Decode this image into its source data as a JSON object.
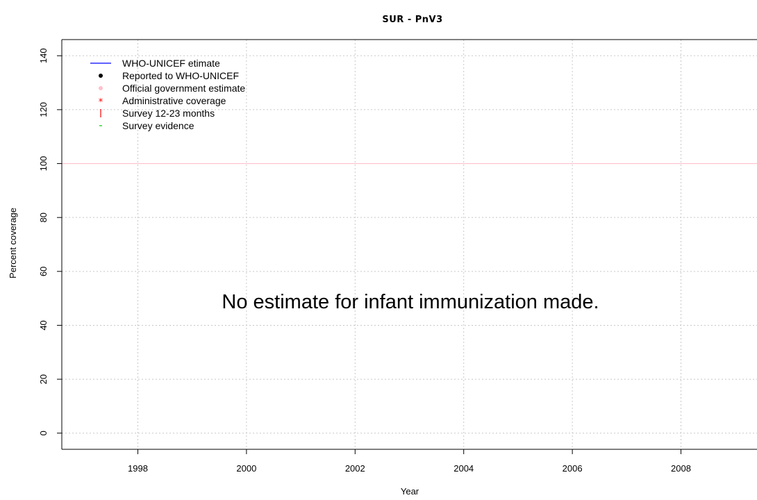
{
  "chart_data": {
    "type": "scatter",
    "title": "SUR  -  PnV3",
    "xlabel": "Year",
    "ylabel": "Percent coverage",
    "xlim": [
      1996.6,
      2009.4
    ],
    "ylim": [
      -6,
      146
    ],
    "x_ticks": [
      1998,
      2000,
      2002,
      2004,
      2006,
      2008
    ],
    "y_ticks": [
      0,
      20,
      40,
      60,
      80,
      100,
      120,
      140
    ],
    "grid": true,
    "reference_line": {
      "y": 100,
      "color": "#ffc0cb"
    },
    "legend_position": "top-left",
    "legend": [
      {
        "label": "WHO-UNICEF etimate",
        "symbol": "line",
        "color": "#0000ff"
      },
      {
        "label": "Reported to WHO-UNICEF",
        "symbol": "dot",
        "color": "#000000"
      },
      {
        "label": "Official government estimate",
        "symbol": "dot",
        "color": "#ffc0cb"
      },
      {
        "label": "Administrative coverage",
        "symbol": "star",
        "color": "#ff0000"
      },
      {
        "label": "Survey 12-23 months",
        "symbol": "bar",
        "color": "#ff0000"
      },
      {
        "label": "Survey evidence",
        "symbol": "dash",
        "color": "#00cc00"
      }
    ],
    "annotation": "No estimate for infant immunization made.",
    "series": []
  }
}
